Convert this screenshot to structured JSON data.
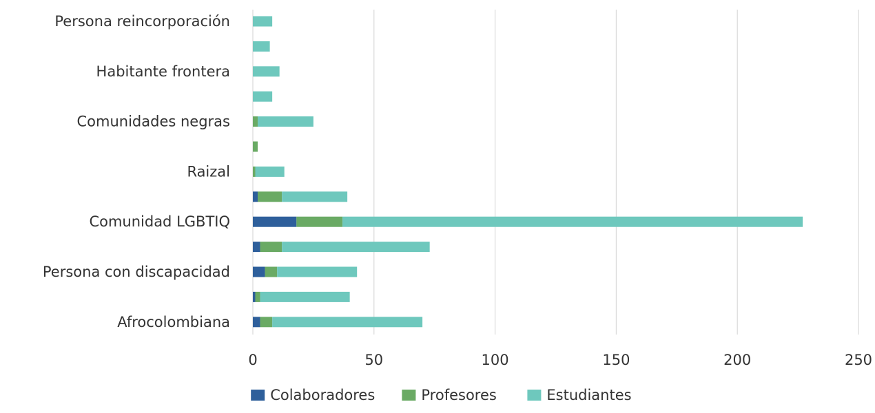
{
  "chart_data": {
    "type": "bar",
    "orientation": "horizontal",
    "stacked": true,
    "categories": [
      "Afrocolombiana",
      "",
      "Persona con discapacidad",
      "",
      "Comunidad LGBTIQ",
      "",
      "Raizal",
      "",
      "Comunidades negras",
      "",
      "Habitante frontera",
      "",
      "Persona reincorporación"
    ],
    "series": [
      {
        "name": "Colaboradores",
        "color": "#2e5f9b",
        "values": [
          3,
          1,
          5,
          3,
          18,
          2,
          0,
          0,
          0,
          0,
          0,
          0,
          0
        ]
      },
      {
        "name": "Profesores",
        "color": "#6aaa64",
        "values": [
          5,
          2,
          5,
          9,
          19,
          10,
          1,
          2,
          2,
          0,
          0,
          0,
          0
        ]
      },
      {
        "name": "Estudiantes",
        "color": "#6ec8bd",
        "values": [
          62,
          37,
          33,
          61,
          190,
          27,
          12,
          0,
          23,
          8,
          11,
          7,
          8
        ]
      }
    ],
    "xlim": [
      0,
      250
    ],
    "xticks": [
      0,
      50,
      100,
      150,
      200,
      250
    ],
    "grid": "vertical",
    "legend": "bottom",
    "title": "",
    "xlabel": "",
    "ylabel": ""
  }
}
